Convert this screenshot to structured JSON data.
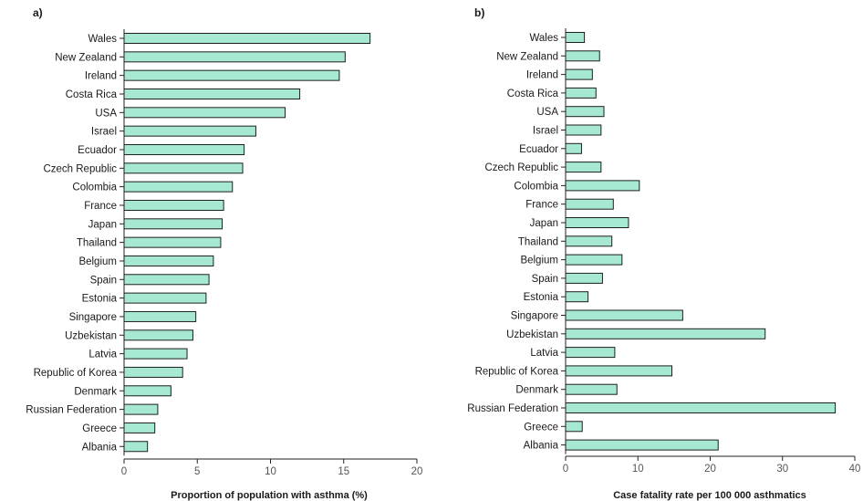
{
  "chart_data": [
    {
      "type": "bar",
      "orientation": "horizontal",
      "panel_label": "a)",
      "categories": [
        "Wales",
        "New Zealand",
        "Ireland",
        "Costa Rica",
        "USA",
        "Israel",
        "Ecuador",
        "Czech Republic",
        "Colombia",
        "France",
        "Japan",
        "Thailand",
        "Belgium",
        "Spain",
        "Estonia",
        "Singapore",
        "Uzbekistan",
        "Latvia",
        "Republic of Korea",
        "Denmark",
        "Russian Federation",
        "Greece",
        "Albania"
      ],
      "values": [
        16.8,
        15.1,
        14.7,
        12.0,
        11.0,
        9.0,
        8.2,
        8.1,
        7.4,
        6.8,
        6.7,
        6.6,
        6.1,
        5.8,
        5.6,
        4.9,
        4.7,
        4.3,
        4.0,
        3.2,
        2.3,
        2.1,
        1.6
      ],
      "xticks": [
        "0",
        "5",
        "10",
        "15",
        "20"
      ],
      "xlim": [
        0,
        20
      ],
      "xlabel": "Proportion of population with asthma (%)",
      "bar_color": "#a7e8d3"
    },
    {
      "type": "bar",
      "orientation": "horizontal",
      "panel_label": "b)",
      "categories": [
        "Wales",
        "New Zealand",
        "Ireland",
        "Costa Rica",
        "USA",
        "Israel",
        "Ecuador",
        "Czech Republic",
        "Colombia",
        "France",
        "Japan",
        "Thailand",
        "Belgium",
        "Spain",
        "Estonia",
        "Singapore",
        "Uzbekistan",
        "Latvia",
        "Republic of Korea",
        "Denmark",
        "Russian Federation",
        "Greece",
        "Albania"
      ],
      "values": [
        2.6,
        4.7,
        3.7,
        4.2,
        5.3,
        4.9,
        2.2,
        4.9,
        10.2,
        6.6,
        8.7,
        6.4,
        7.8,
        5.1,
        3.1,
        16.2,
        27.6,
        6.8,
        14.7,
        7.1,
        37.3,
        2.3,
        21.1
      ],
      "xticks": [
        "0",
        "10",
        "20",
        "30",
        "40"
      ],
      "xlim": [
        0,
        40
      ],
      "xlabel": "Case fatality rate per 100 000 asthmatics",
      "bar_color": "#a7e8d3"
    }
  ]
}
